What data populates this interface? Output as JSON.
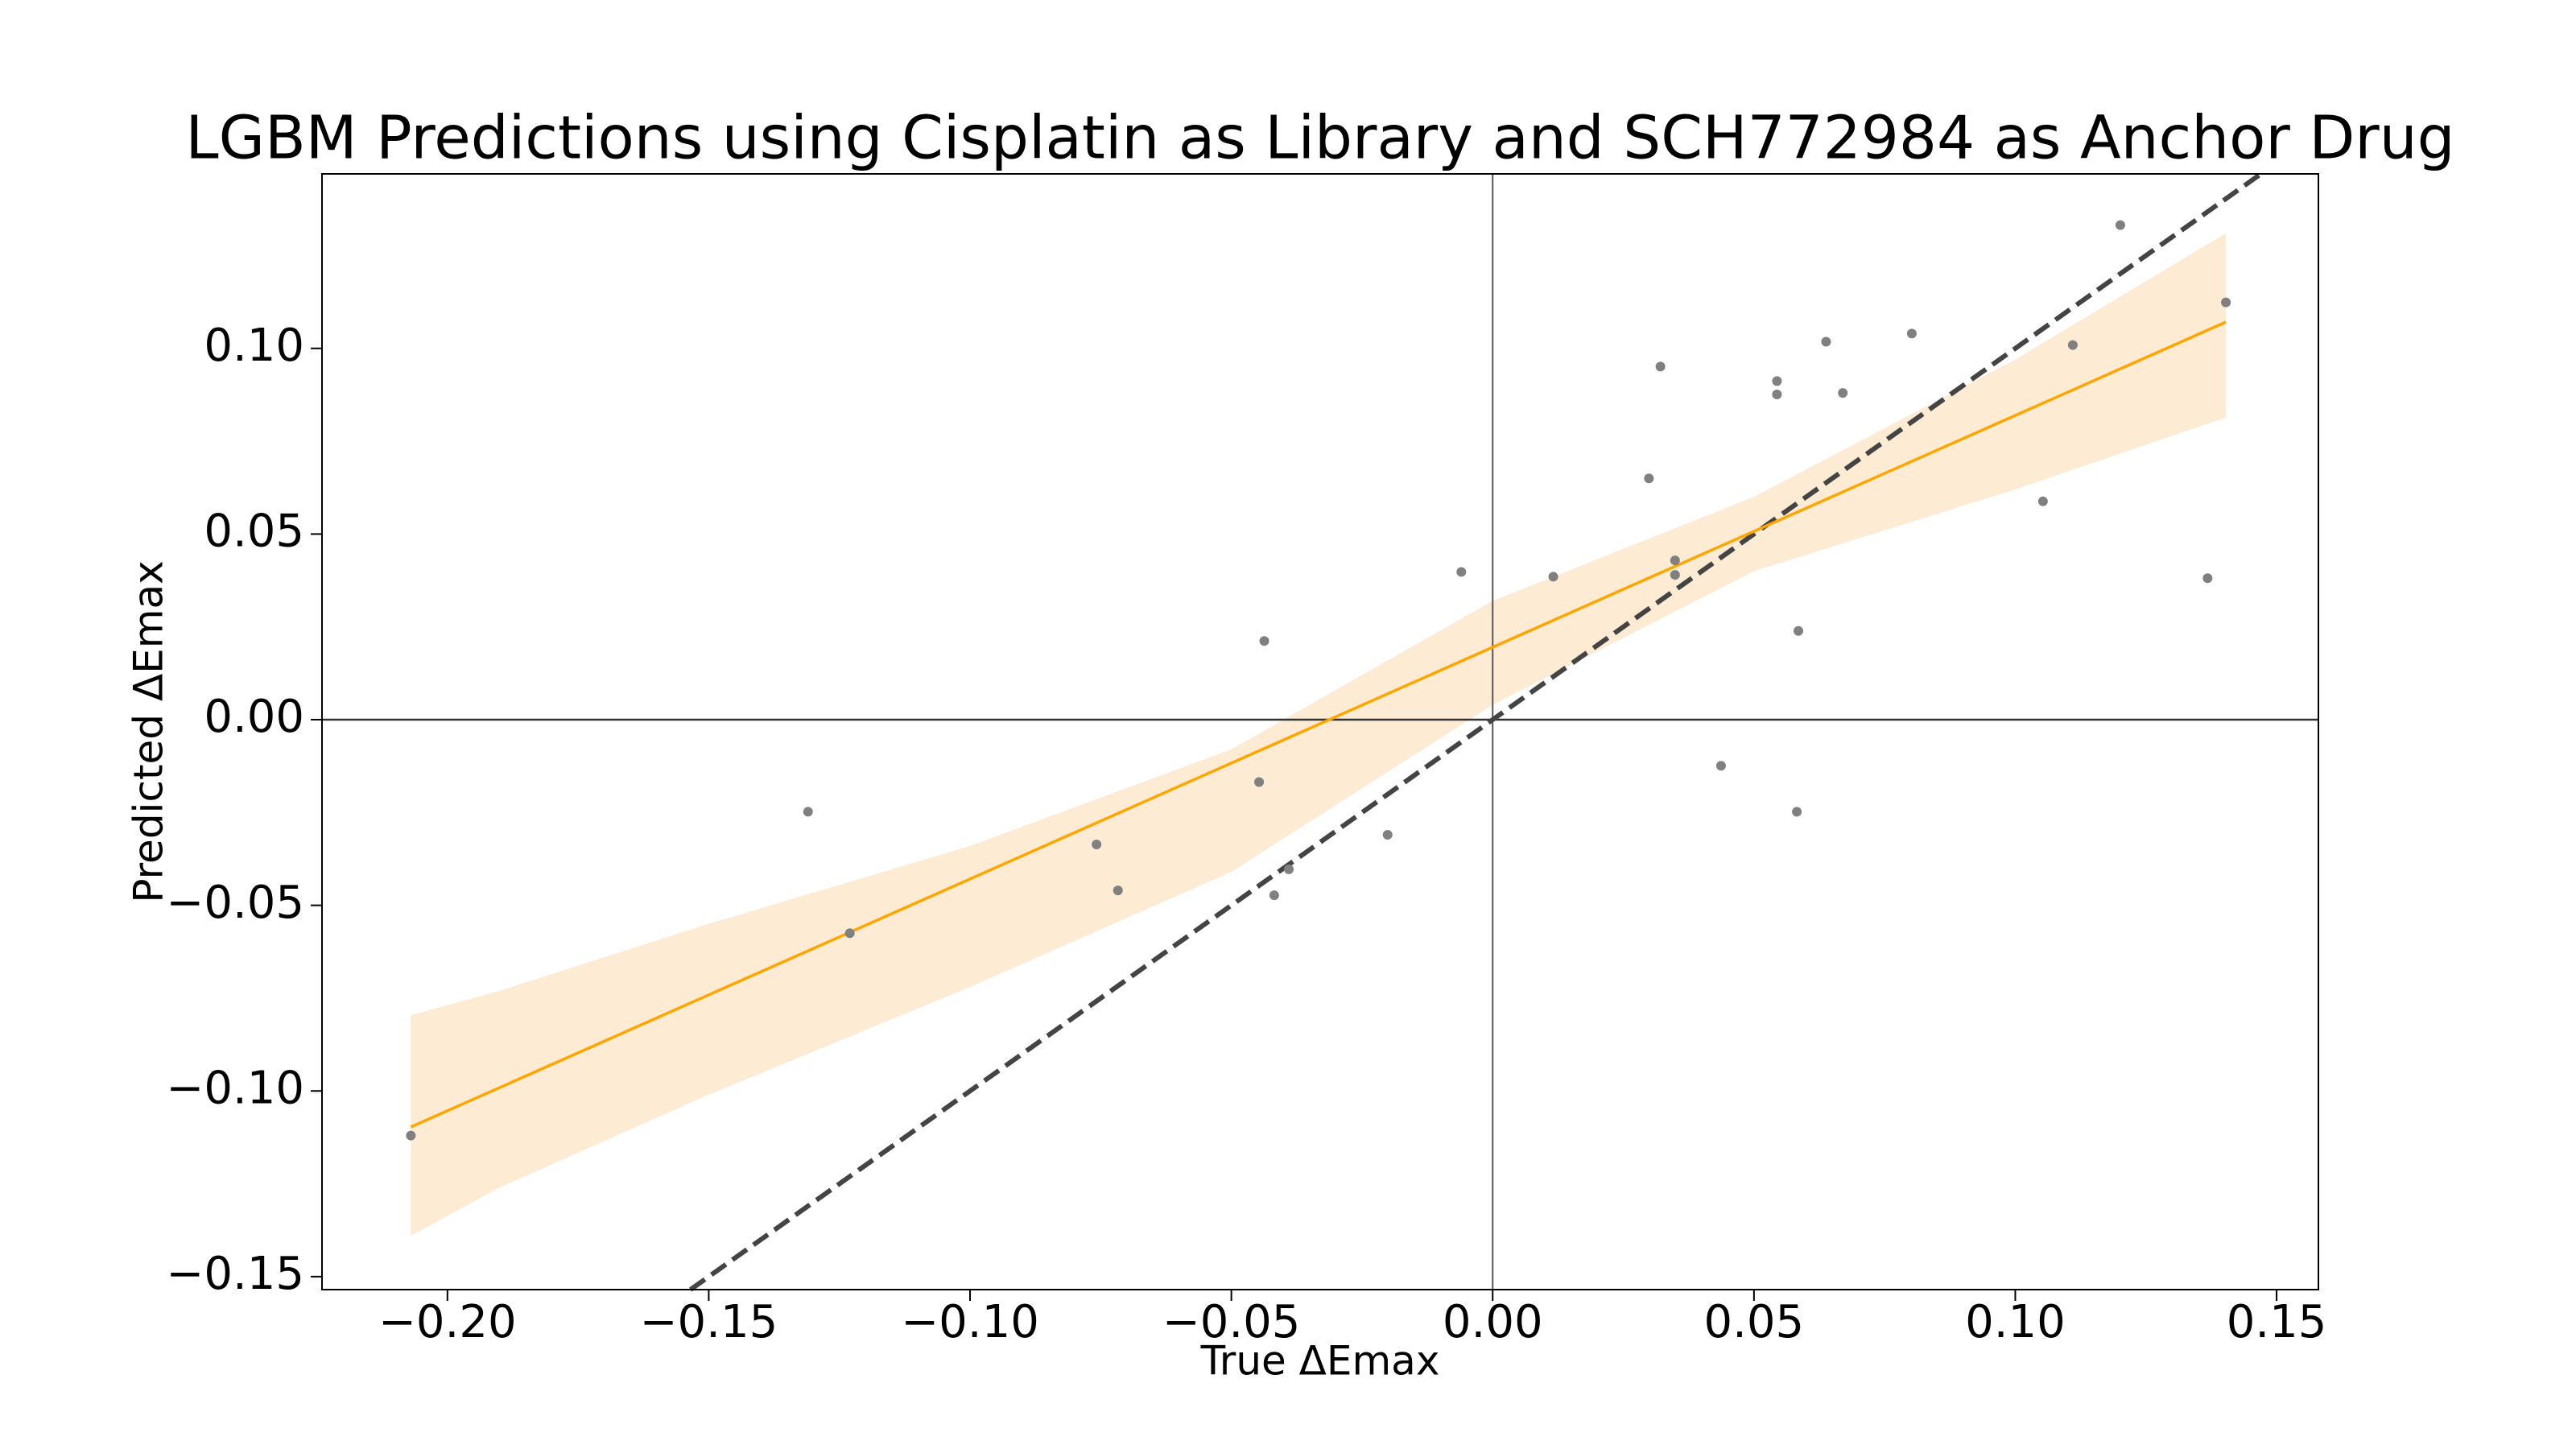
{
  "chart_data": {
    "type": "scatter",
    "title": "LGBM Predictions using Cisplatin as Library and SCH772984 as Anchor Drug",
    "x_label": "True ΔEmax",
    "y_label": "Predicted ΔEmax",
    "xlim": [
      -0.224,
      0.158
    ],
    "ylim": [
      -0.1535,
      0.147
    ],
    "xticks": [
      {
        "value": -0.2,
        "label": "−0.20"
      },
      {
        "value": -0.15,
        "label": "−0.15"
      },
      {
        "value": -0.1,
        "label": "−0.10"
      },
      {
        "value": -0.05,
        "label": "−0.05"
      },
      {
        "value": 0,
        "label": "0.00"
      },
      {
        "value": 0.05,
        "label": "0.05"
      },
      {
        "value": 0.1,
        "label": "0.10"
      },
      {
        "value": 0.15,
        "label": "0.15"
      }
    ],
    "yticks": [
      {
        "value": -0.15,
        "label": "−0.15"
      },
      {
        "value": -0.1,
        "label": "−0.10"
      },
      {
        "value": -0.05,
        "label": "−0.05"
      },
      {
        "value": 0,
        "label": "0.00"
      },
      {
        "value": 0.05,
        "label": "0.05"
      },
      {
        "value": 0.1,
        "label": "0.10"
      }
    ],
    "points": {
      "color": "#808080",
      "x": [
        -0.207,
        -0.131,
        -0.123,
        -0.0758,
        -0.0717,
        -0.0447,
        -0.0437,
        -0.0418,
        -0.039,
        -0.0201,
        -0.006,
        0.0116,
        0.0299,
        0.0321,
        0.0349,
        0.0349,
        0.0437,
        0.0544,
        0.0544,
        0.0582,
        0.0585,
        0.0638,
        0.067,
        0.0802,
        0.1053,
        0.111,
        0.1201,
        0.1368,
        0.1403
      ],
      "values": [
        -0.112,
        -0.0248,
        -0.0575,
        -0.0336,
        -0.046,
        -0.0168,
        0.0212,
        -0.0473,
        -0.0403,
        -0.031,
        0.0398,
        0.0385,
        0.065,
        0.0951,
        0.0429,
        0.039,
        -0.0124,
        0.0912,
        0.0876,
        -0.0248,
        0.0239,
        0.1018,
        0.088,
        0.104,
        0.0588,
        0.1009,
        0.1332,
        0.0381,
        0.1124
      ]
    },
    "fit": {
      "color": "#ffa500",
      "x": [
        -0.207,
        0.1403
      ],
      "values": [
        -0.1097,
        0.1071
      ]
    },
    "band": {
      "color": "#fdebd3",
      "x": [
        -0.207,
        -0.19,
        -0.15,
        -0.1,
        -0.05,
        0,
        0.05,
        0.1,
        0.1403
      ],
      "lower": [
        -0.139,
        -0.126,
        -0.101,
        -0.072,
        -0.041,
        0.004,
        0.04,
        0.062,
        0.0814
      ],
      "upper": [
        -0.0796,
        -0.073,
        -0.055,
        -0.034,
        -0.008,
        0.032,
        0.06,
        0.097,
        0.131
      ]
    }
  }
}
